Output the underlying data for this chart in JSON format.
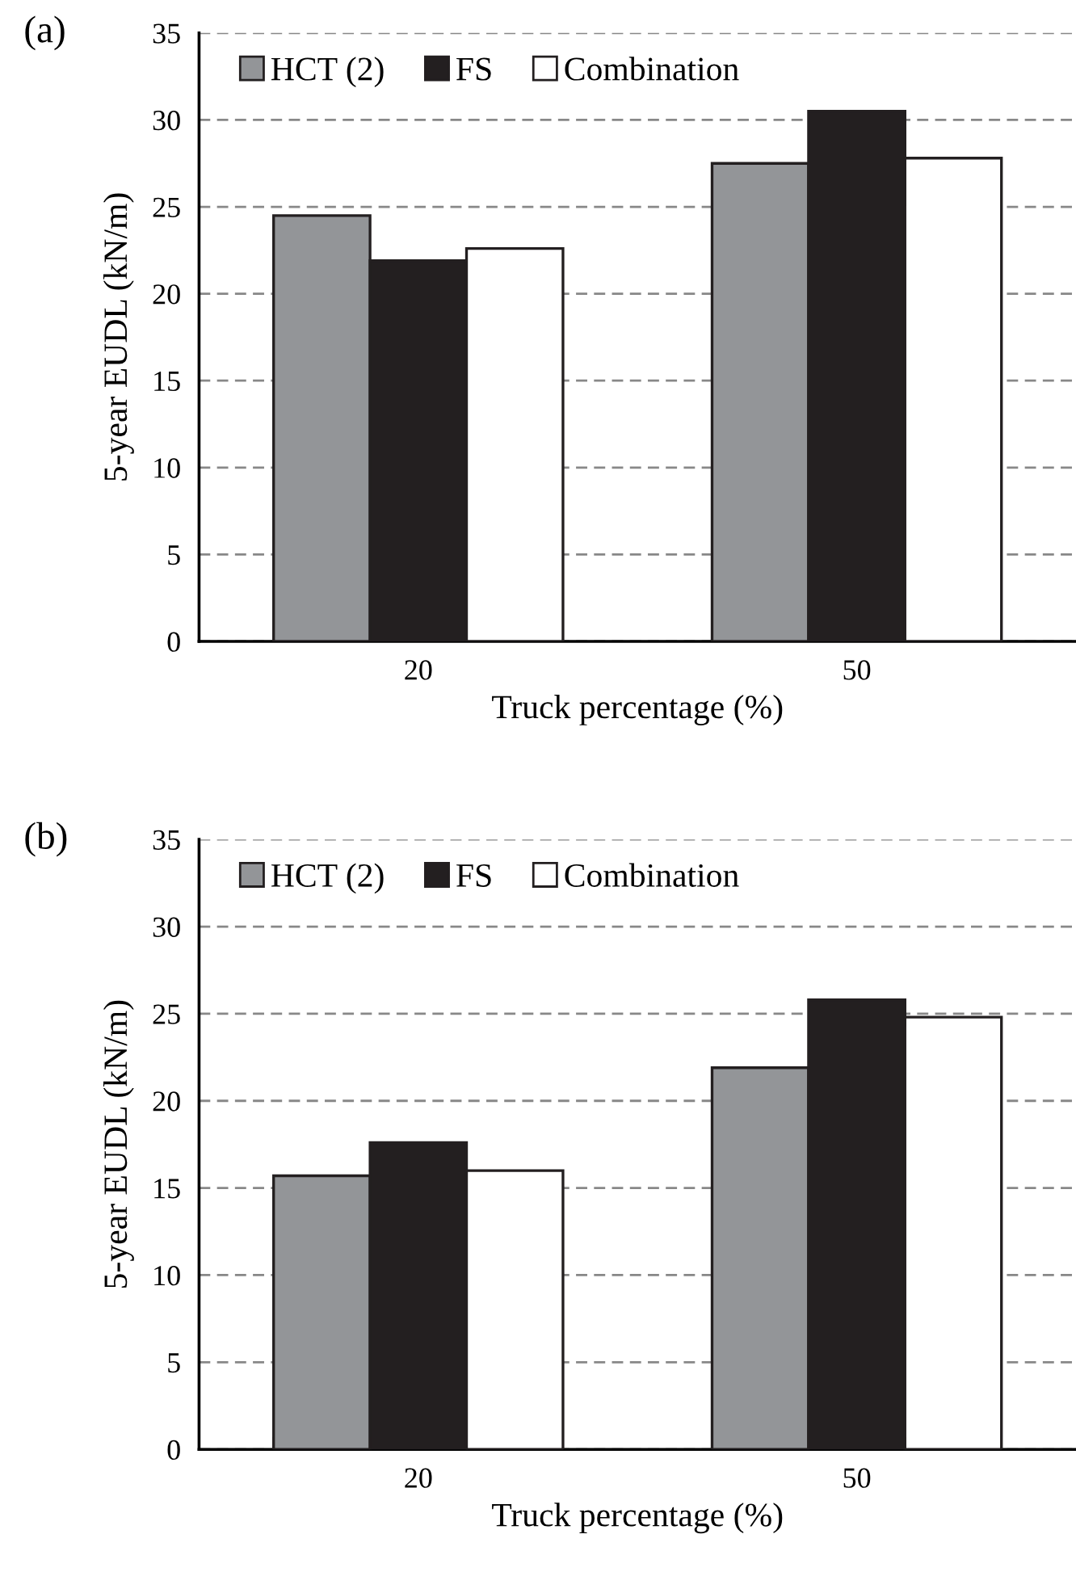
{
  "chart_data": [
    {
      "type": "bar",
      "title": "(a)",
      "xlabel": "Truck percentage (%)",
      "ylabel": "5-year EUDL (kN/m)",
      "categories": [
        "20",
        "50"
      ],
      "series": [
        {
          "name": "HCT (2)",
          "color": "#939598",
          "values": [
            24.5,
            27.5
          ]
        },
        {
          "name": "FS",
          "color": "#231f20",
          "values": [
            21.9,
            30.5
          ]
        },
        {
          "name": "Combination",
          "color": "#ffffff",
          "values": [
            22.6,
            27.8
          ]
        }
      ],
      "ylim": [
        0,
        35
      ],
      "yticks": [
        0,
        5,
        10,
        15,
        20,
        25,
        30,
        35
      ],
      "grid": "y",
      "legend": "top left"
    },
    {
      "type": "bar",
      "title": "(b)",
      "xlabel": "Truck percentage (%)",
      "ylabel": "5-year EUDL (kN/m)",
      "categories": [
        "20",
        "50"
      ],
      "series": [
        {
          "name": "HCT (2)",
          "color": "#939598",
          "values": [
            15.7,
            21.9
          ]
        },
        {
          "name": "FS",
          "color": "#231f20",
          "values": [
            17.6,
            25.8
          ]
        },
        {
          "name": "Combination",
          "color": "#ffffff",
          "values": [
            16.0,
            24.8
          ]
        }
      ],
      "ylim": [
        0,
        35
      ],
      "yticks": [
        0,
        5,
        10,
        15,
        20,
        25,
        30,
        35
      ],
      "grid": "y",
      "legend": "top left"
    }
  ]
}
